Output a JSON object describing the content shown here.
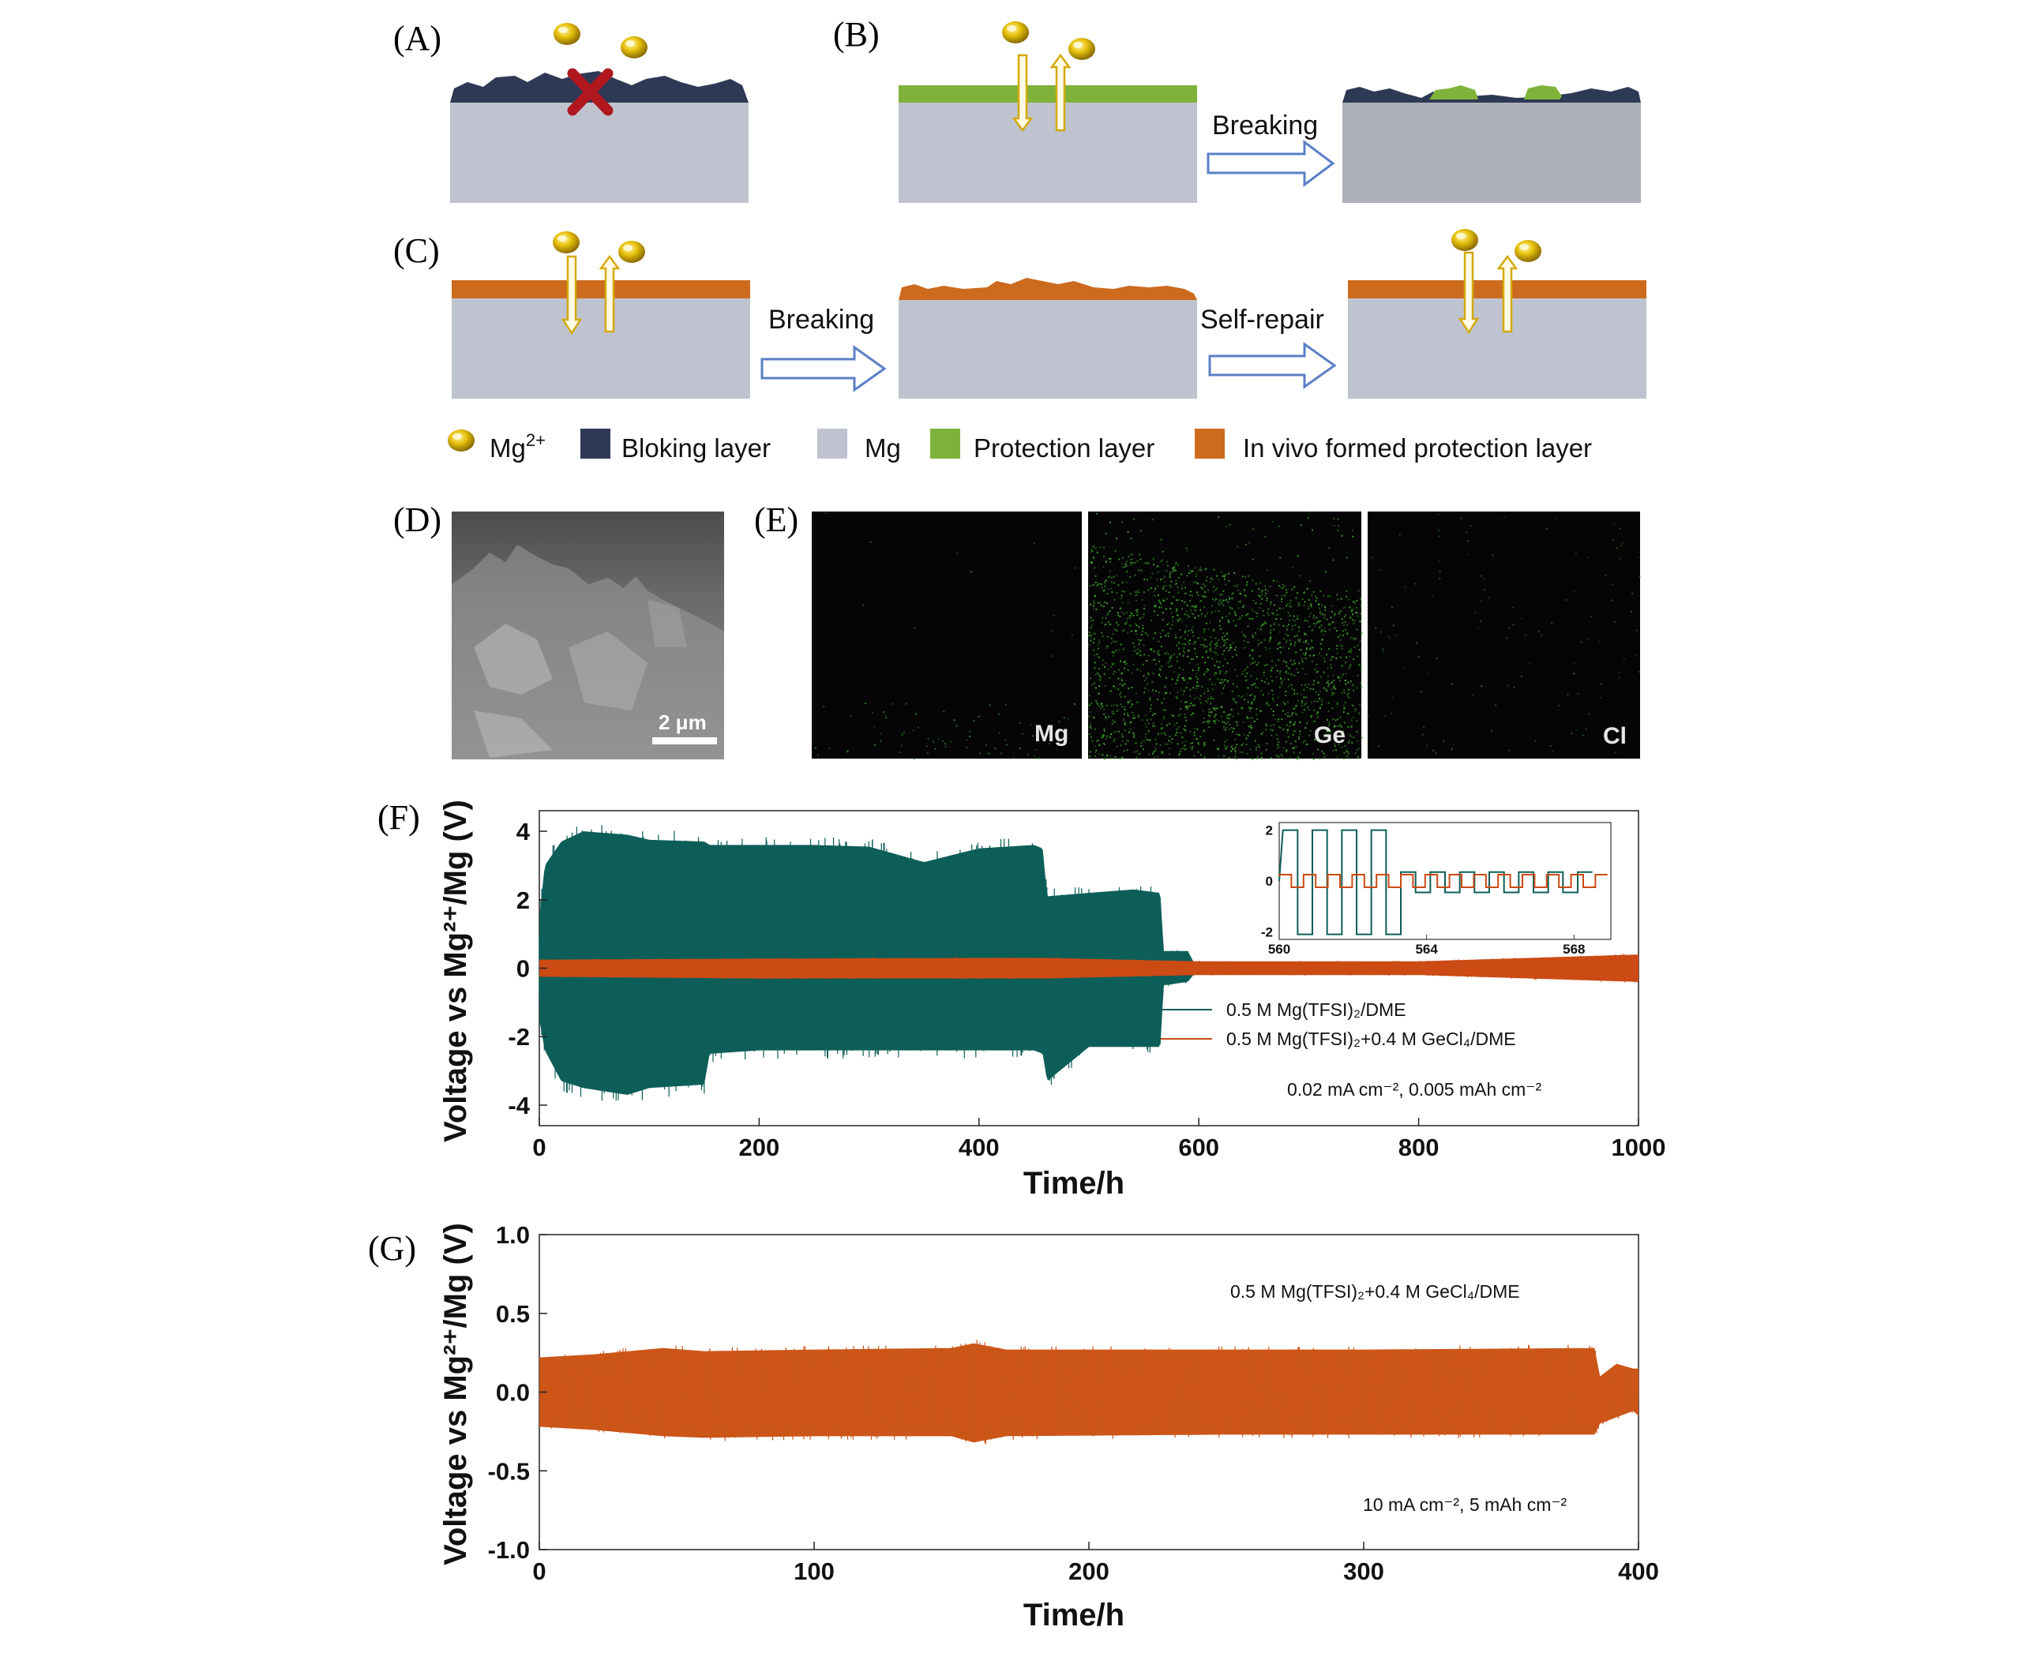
{
  "panels": {
    "a": "(A)",
    "b": "(B)",
    "c": "(C)",
    "d": "(D)",
    "e": "(E)",
    "f": "(F)",
    "g": "(G)"
  },
  "schematic": {
    "breaking_b": "Breaking",
    "breaking_c": "Breaking",
    "self_repair": "Self-repair",
    "legend": {
      "mg_ion_base": "Mg",
      "mg_ion_sup": "2+",
      "blocking": "Bloking layer",
      "mg": "Mg",
      "protection": "Protection layer",
      "in_vivo": "In vivo formed protection layer"
    },
    "colors": {
      "ion": "#d4a90a",
      "blocking": "#2e3a55",
      "mg_substrate": "#bfc3cf",
      "mg_broken": "#aeb0b8",
      "protection": "#7fb23a",
      "in_vivo": "#cc6a1e",
      "arrow": "#5b7fc7",
      "cross": "#b0171f"
    }
  },
  "sem": {
    "scale_bar": "2 μm"
  },
  "eds": {
    "maps": [
      "Mg",
      "Ge",
      "Cl"
    ]
  },
  "chart_data": [
    {
      "panel": "F",
      "type": "line",
      "xlabel": "Time/h",
      "ylabel": "Voltage vs Mg²⁺/Mg (V)",
      "xlim": [
        0,
        1000
      ],
      "ylim": [
        -4.6,
        4.6
      ],
      "x_ticks": [
        0,
        200,
        400,
        600,
        800,
        1000
      ],
      "y_ticks": [
        4,
        2,
        0,
        -2,
        -4
      ],
      "annotation": "0.02 mA cm⁻², 0.005 mAh cm⁻²",
      "series": [
        {
          "name": "0.5 M Mg(TFSI)₂/DME",
          "color": "#0d5e58",
          "envelope": [
            {
              "x": 0,
              "upper": 1.5,
              "lower": -1.5
            },
            {
              "x": 5,
              "upper": 3.0,
              "lower": -2.4
            },
            {
              "x": 20,
              "upper": 3.7,
              "lower": -3.3
            },
            {
              "x": 40,
              "upper": 4.0,
              "lower": -3.5
            },
            {
              "x": 80,
              "upper": 3.9,
              "lower": -3.7
            },
            {
              "x": 100,
              "upper": 3.75,
              "lower": -3.5
            },
            {
              "x": 150,
              "upper": 3.7,
              "lower": -3.4
            },
            {
              "x": 155,
              "upper": 3.6,
              "lower": -2.5
            },
            {
              "x": 200,
              "upper": 3.6,
              "lower": -2.4
            },
            {
              "x": 250,
              "upper": 3.6,
              "lower": -2.4
            },
            {
              "x": 300,
              "upper": 3.55,
              "lower": -2.4
            },
            {
              "x": 350,
              "upper": 3.1,
              "lower": -2.4
            },
            {
              "x": 400,
              "upper": 3.5,
              "lower": -2.4
            },
            {
              "x": 450,
              "upper": 3.6,
              "lower": -2.4
            },
            {
              "x": 458,
              "upper": 3.5,
              "lower": -2.5
            },
            {
              "x": 462,
              "upper": 2.1,
              "lower": -3.3
            },
            {
              "x": 500,
              "upper": 2.2,
              "lower": -2.3
            },
            {
              "x": 540,
              "upper": 2.3,
              "lower": -2.3
            },
            {
              "x": 565,
              "upper": 2.2,
              "lower": -2.3
            },
            {
              "x": 568,
              "upper": 0.5,
              "lower": -0.5
            },
            {
              "x": 590,
              "upper": 0.5,
              "lower": -0.4
            },
            {
              "x": 595,
              "upper": 0.2,
              "lower": -0.2
            }
          ]
        },
        {
          "name": "0.5 M Mg(TFSI)₂+0.4 M GeCl₄/DME",
          "color": "#cc4a14",
          "envelope": [
            {
              "x": 0,
              "upper": 0.25,
              "lower": -0.25
            },
            {
              "x": 200,
              "upper": 0.28,
              "lower": -0.3
            },
            {
              "x": 400,
              "upper": 0.3,
              "lower": -0.3
            },
            {
              "x": 460,
              "upper": 0.3,
              "lower": -0.3
            },
            {
              "x": 600,
              "upper": 0.2,
              "lower": -0.2
            },
            {
              "x": 800,
              "upper": 0.2,
              "lower": -0.2
            },
            {
              "x": 900,
              "upper": 0.3,
              "lower": -0.3
            },
            {
              "x": 1000,
              "upper": 0.4,
              "lower": -0.4
            }
          ]
        }
      ],
      "inset": {
        "xlim": [
          560,
          569
        ],
        "ylim": [
          -2.3,
          2.3
        ],
        "x_ticks": [
          560,
          564,
          568
        ],
        "y_ticks": [
          2,
          0,
          -2
        ]
      }
    },
    {
      "panel": "G",
      "type": "line",
      "xlabel": "Time/h",
      "ylabel": "Voltage vs Mg²⁺/Mg (V)",
      "xlim": [
        0,
        400
      ],
      "ylim": [
        -1.0,
        1.0
      ],
      "x_ticks": [
        0,
        100,
        200,
        300,
        400
      ],
      "y_ticks": [
        "1.0",
        "0.5",
        "0.0",
        "-0.5",
        "-1.0"
      ],
      "annotation": "10 mA cm⁻², 5 mAh cm⁻²",
      "series": [
        {
          "name": "0.5 M Mg(TFSI)₂+0.4 M GeCl₄/DME",
          "color": "#cc5518",
          "envelope": [
            {
              "x": 0,
              "upper": 0.22,
              "lower": -0.22
            },
            {
              "x": 20,
              "upper": 0.24,
              "lower": -0.24
            },
            {
              "x": 45,
              "upper": 0.28,
              "lower": -0.28
            },
            {
              "x": 60,
              "upper": 0.26,
              "lower": -0.29
            },
            {
              "x": 100,
              "upper": 0.27,
              "lower": -0.28
            },
            {
              "x": 150,
              "upper": 0.28,
              "lower": -0.28
            },
            {
              "x": 158,
              "upper": 0.31,
              "lower": -0.32
            },
            {
              "x": 170,
              "upper": 0.27,
              "lower": -0.28
            },
            {
              "x": 250,
              "upper": 0.27,
              "lower": -0.27
            },
            {
              "x": 300,
              "upper": 0.27,
              "lower": -0.27
            },
            {
              "x": 384,
              "upper": 0.28,
              "lower": -0.27
            },
            {
              "x": 386,
              "upper": 0.1,
              "lower": -0.2
            },
            {
              "x": 392,
              "upper": 0.18,
              "lower": -0.16
            },
            {
              "x": 398,
              "upper": 0.15,
              "lower": -0.12
            },
            {
              "x": 400,
              "upper": 0.15,
              "lower": -0.15
            }
          ]
        }
      ]
    }
  ]
}
